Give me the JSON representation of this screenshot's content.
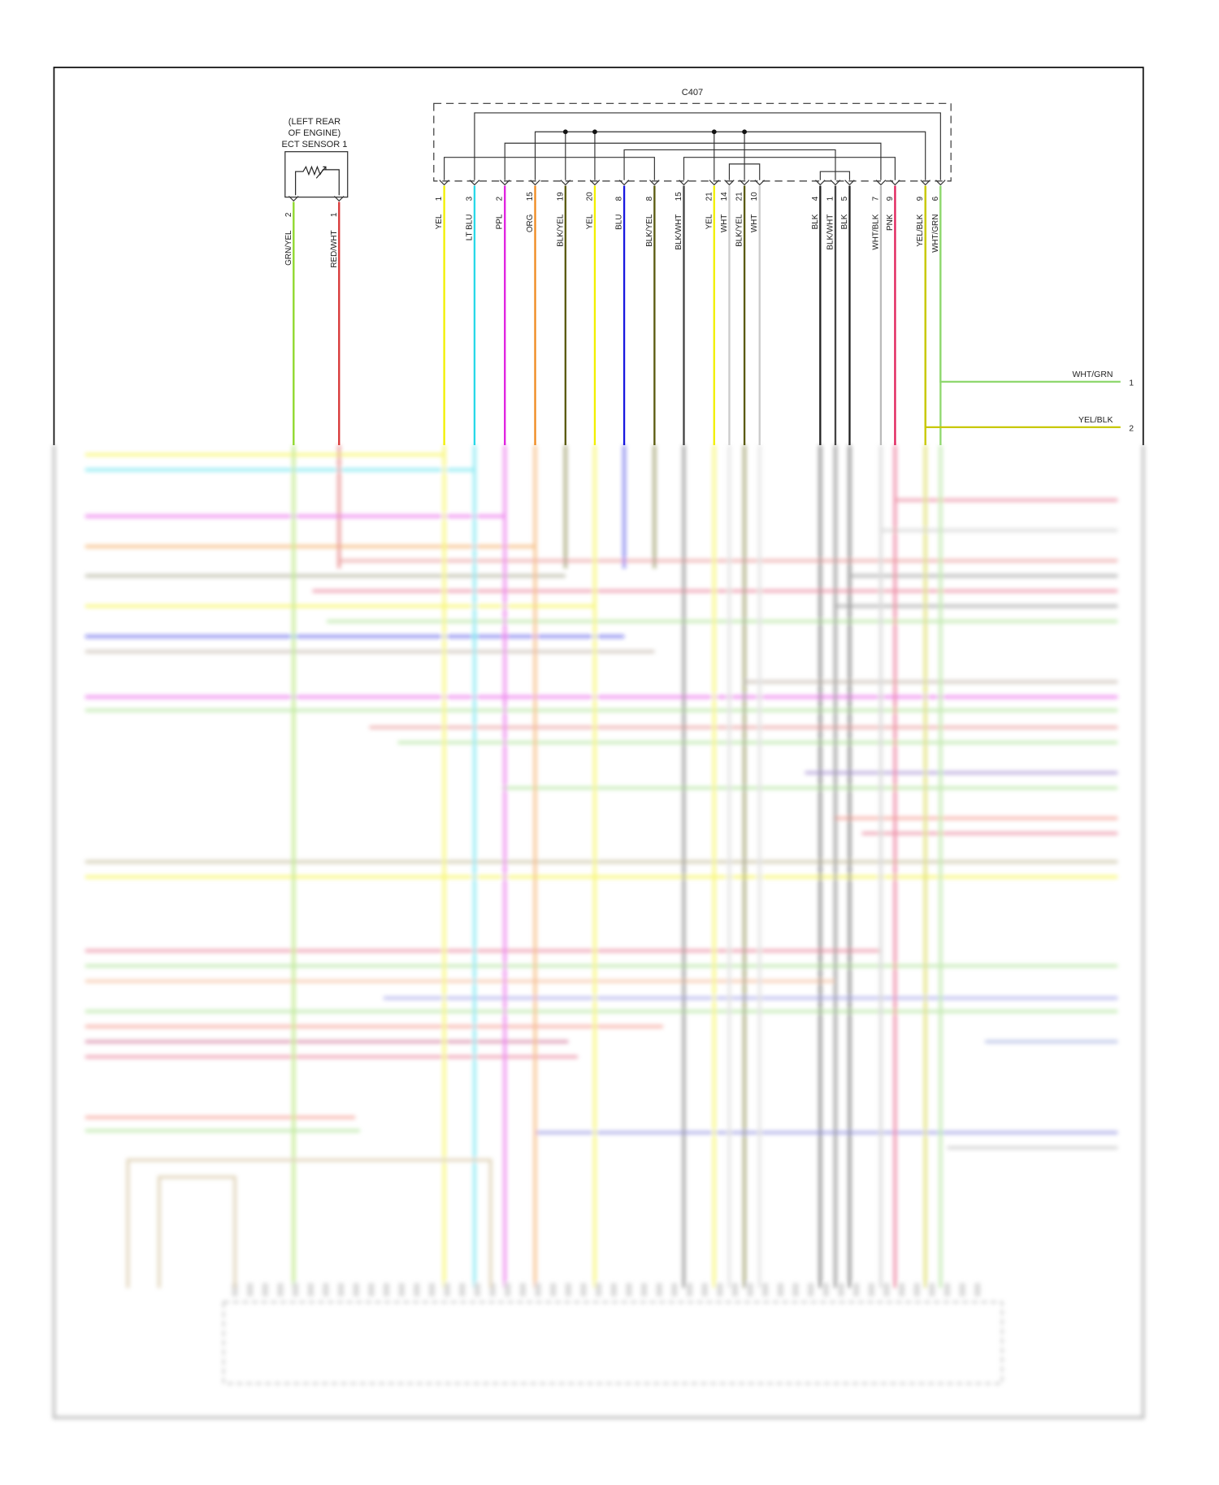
{
  "sensor": {
    "title_lines": [
      "(LEFT REAR",
      "OF ENGINE)",
      "ECT SENSOR 1"
    ],
    "wires": [
      {
        "pin": "2",
        "color": "GRN/YEL",
        "hex": "#8ed82a"
      },
      {
        "pin": "1",
        "color": "RED/WHT",
        "hex": "#d83838"
      }
    ]
  },
  "connector": {
    "name": "C407",
    "wires": [
      {
        "pin": "1",
        "color": "YEL",
        "hex": "#f2f000"
      },
      {
        "pin": "3",
        "color": "LT BLU",
        "hex": "#28d8e8"
      },
      {
        "pin": "2",
        "color": "PPL",
        "hex": "#e020e0"
      },
      {
        "pin": "15",
        "color": "ORG",
        "hex": "#f08a20"
      },
      {
        "pin": "19",
        "color": "BLK/YEL",
        "hex": "#5a5a10"
      },
      {
        "pin": "20",
        "color": "YEL",
        "hex": "#f2f000"
      },
      {
        "pin": "8",
        "color": "BLU",
        "hex": "#1818e0"
      },
      {
        "pin": "8",
        "color": "BLK/YEL",
        "hex": "#5a5a10"
      },
      {
        "pin": "15",
        "color": "BLK/WHT",
        "hex": "#444444"
      },
      {
        "pin": "21",
        "color": "YEL",
        "hex": "#f2f000"
      },
      {
        "pin": "14",
        "color": "WHT",
        "hex": "#cccccc"
      },
      {
        "pin": "21",
        "color": "BLK/YEL",
        "hex": "#5a5a10"
      },
      {
        "pin": "10",
        "color": "WHT",
        "hex": "#cccccc"
      },
      {
        "pin": "4",
        "color": "BLK",
        "hex": "#222222"
      },
      {
        "pin": "1",
        "color": "BLK/WHT",
        "hex": "#444444"
      },
      {
        "pin": "5",
        "color": "BLK",
        "hex": "#222222"
      },
      {
        "pin": "7",
        "color": "WHT/BLK",
        "hex": "#bbbbbb"
      },
      {
        "pin": "9",
        "color": "PNK",
        "hex": "#e0205a"
      },
      {
        "pin": "9",
        "color": "YEL/BLK",
        "hex": "#c8c800"
      },
      {
        "pin": "6",
        "color": "WHT/GRN",
        "hex": "#90d870"
      }
    ]
  },
  "right_outputs": [
    {
      "pin": "1",
      "color": "WHT/GRN",
      "hex": "#90d870"
    },
    {
      "pin": "2",
      "color": "YEL/BLK",
      "hex": "#c8c800"
    }
  ]
}
